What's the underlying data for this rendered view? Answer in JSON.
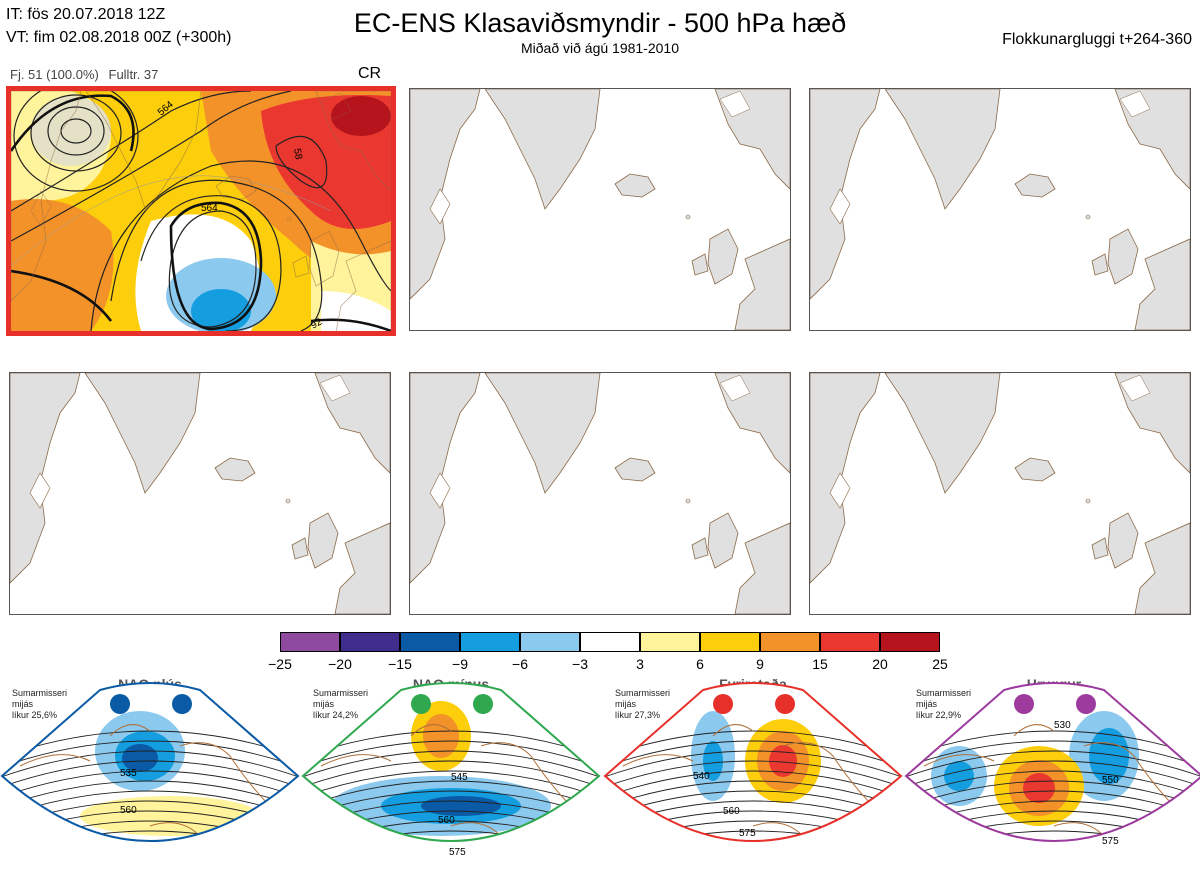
{
  "header": {
    "it_line": "IT: fös 20.07.2018 12Z",
    "vt_line": "VT: fim 02.08.2018 00Z  (+300h)",
    "title": "EC-ENS Klasaviðsmyndir - 500 hPa hæð",
    "subtitle": "Miðað við ágú 1981-2010",
    "window": "Flokkunargluggi t+264-360"
  },
  "cluster_info": {
    "members": "Fj. 51 (100.0%)",
    "representative": "Fulltr. 37",
    "regime": "CR"
  },
  "active_panel": {
    "contour_labels": [
      "564",
      "564",
      "58",
      "92"
    ]
  },
  "colorbar": {
    "ticks": [
      "−25",
      "−20",
      "−15",
      "−9",
      "−6",
      "−3",
      "3",
      "6",
      "9",
      "15",
      "20",
      "25"
    ],
    "colors": [
      "#8e4a9e",
      "#3f2e8e",
      "#0b5aa6",
      "#149ee0",
      "#8bc9ee",
      "#ffffff",
      "#fff39b",
      "#fcce0c",
      "#f4922a",
      "#ea3831",
      "#b5141c"
    ]
  },
  "regimes": [
    {
      "name": "NAO plús",
      "note": [
        "Sumarmisseri",
        "mijás",
        "líkur 25,6%"
      ],
      "color": "#0b5aa6",
      "labels": [
        "535",
        "560"
      ]
    },
    {
      "name": "NAO mínus",
      "note": [
        "Sumarmisseri",
        "mijás",
        "líkur 24,2%"
      ],
      "color": "#2fa84f",
      "labels": [
        "545",
        "560",
        "575"
      ]
    },
    {
      "name": "Fyrirstaða",
      "note": [
        "Sumarmisseri",
        "mijás",
        "líkur 27,3%"
      ],
      "color": "#e8302a",
      "labels": [
        "540",
        "560",
        "575"
      ]
    },
    {
      "name": "Hryggur",
      "note": [
        "Sumarmisseri",
        "mijás",
        "líkur 22,9%"
      ],
      "color": "#9c3a9e",
      "labels": [
        "530",
        "550",
        "575"
      ]
    }
  ]
}
